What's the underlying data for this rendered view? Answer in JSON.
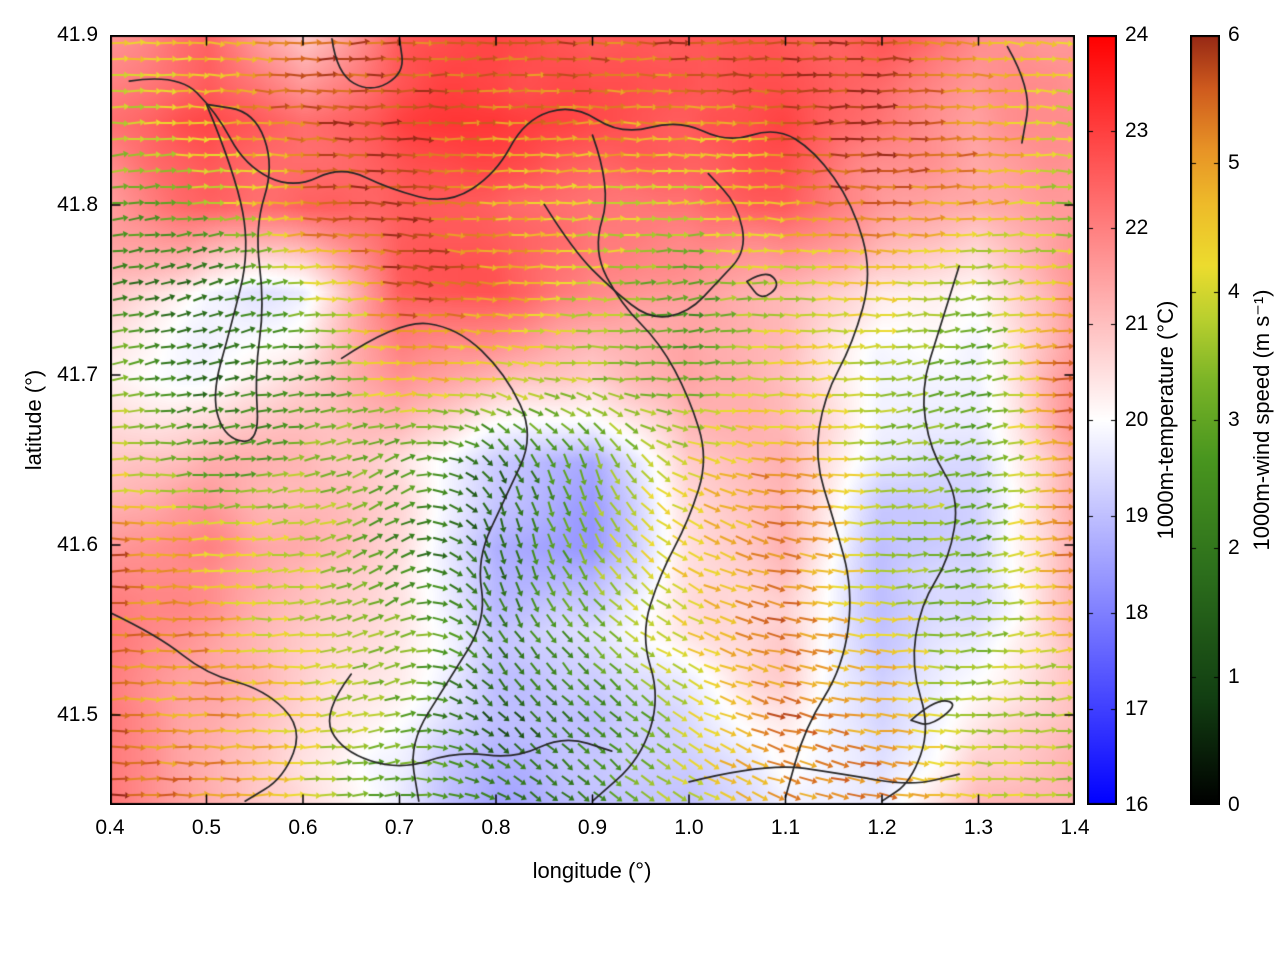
{
  "chart_data": {
    "type": "heatmap",
    "subtype": "temperature-field-with-wind-vector-overlay-and-contours",
    "title": "",
    "xlabel": "longitude (°)",
    "ylabel": "latitude (°)",
    "xlim": [
      0.4,
      1.4
    ],
    "ylim": [
      41.447,
      41.9
    ],
    "x_ticks": [
      0.4,
      0.5,
      0.6,
      0.7,
      0.8,
      0.9,
      1.0,
      1.1,
      1.2,
      1.3,
      1.4
    ],
    "x_tick_labels": [
      "0.4",
      "0.5",
      "0.6",
      "0.7",
      "0.8",
      "0.9",
      "1.0",
      "1.1",
      "1.2",
      "1.3",
      "1.4"
    ],
    "y_ticks": [
      41.5,
      41.6,
      41.7,
      41.8,
      41.9
    ],
    "y_tick_labels": [
      "41.5",
      "41.6",
      "41.7",
      "41.8",
      "41.9"
    ],
    "grid_on": false,
    "colorbars": [
      {
        "id": "temperature",
        "label": "1000m-temperature (°C)",
        "min": 16,
        "max": 24,
        "ticks": [
          16,
          17,
          18,
          19,
          20,
          21,
          22,
          23,
          24
        ],
        "tick_labels": [
          "16",
          "17",
          "18",
          "19",
          "20",
          "21",
          "22",
          "23",
          "24"
        ],
        "stops": [
          [
            0,
            "#0000ff"
          ],
          [
            0.5,
            "#ffffff"
          ],
          [
            1,
            "#ff0000"
          ]
        ]
      },
      {
        "id": "wind-speed",
        "label": "1000m-wind speed (m s⁻¹)",
        "min": 0,
        "max": 6,
        "ticks": [
          0,
          1,
          2,
          3,
          4,
          5,
          6
        ],
        "tick_labels": [
          "0",
          "1",
          "2",
          "3",
          "4",
          "5",
          "6"
        ],
        "stops": [
          [
            0,
            "#000000"
          ],
          [
            0.14,
            "#123f12"
          ],
          [
            0.3,
            "#2c6e1c"
          ],
          [
            0.45,
            "#49961f"
          ],
          [
            0.55,
            "#7ab427"
          ],
          [
            0.63,
            "#b8cf2e"
          ],
          [
            0.7,
            "#ecdc2e"
          ],
          [
            0.78,
            "#eebb2a"
          ],
          [
            0.85,
            "#e89426"
          ],
          [
            0.93,
            "#cf5b1e"
          ],
          [
            1,
            "#962815"
          ]
        ]
      }
    ],
    "grid": {
      "lon": [
        0.4,
        0.5,
        0.6,
        0.7,
        0.8,
        0.9,
        1.0,
        1.1,
        1.2,
        1.3,
        1.4
      ],
      "lat": [
        41.9,
        41.85,
        41.8,
        41.75,
        41.7,
        41.65,
        41.6,
        41.55,
        41.5,
        41.45
      ],
      "temperature": [
        [
          22.0,
          22.5,
          20.8,
          22.3,
          22.6,
          22.3,
          22.6,
          22.2,
          22.4,
          21.6,
          21.8
        ],
        [
          22.3,
          23.0,
          22.4,
          22.8,
          23.0,
          22.6,
          22.4,
          22.6,
          22.0,
          21.4,
          21.9
        ],
        [
          21.4,
          22.4,
          22.9,
          22.5,
          22.2,
          22.0,
          21.9,
          22.4,
          21.4,
          21.0,
          21.6
        ],
        [
          20.8,
          19.9,
          20.0,
          22.4,
          22.5,
          21.6,
          21.4,
          21.0,
          20.0,
          19.8,
          21.4
        ],
        [
          20.6,
          20.2,
          20.6,
          21.6,
          21.0,
          20.6,
          21.4,
          20.8,
          19.6,
          19.6,
          21.5
        ],
        [
          21.0,
          21.4,
          21.0,
          20.4,
          19.0,
          18.4,
          20.6,
          21.0,
          19.5,
          19.3,
          21.0
        ],
        [
          21.5,
          22.0,
          21.4,
          20.5,
          18.5,
          18.2,
          20.4,
          21.4,
          19.3,
          19.6,
          21.4
        ],
        [
          22.0,
          21.6,
          21.0,
          20.4,
          19.0,
          19.4,
          20.4,
          21.0,
          19.5,
          20.0,
          21.4
        ],
        [
          22.2,
          21.6,
          20.8,
          20.2,
          19.2,
          19.0,
          19.6,
          20.5,
          19.6,
          20.5,
          21.0
        ],
        [
          22.5,
          21.6,
          20.6,
          20.0,
          18.9,
          19.2,
          19.0,
          20.0,
          19.8,
          21.0,
          21.0
        ]
      ],
      "wind_speed": [
        [
          4.0,
          4.6,
          5.4,
          5.6,
          5.9,
          5.6,
          5.4,
          5.6,
          5.9,
          5.0,
          4.6
        ],
        [
          3.6,
          4.6,
          5.5,
          5.9,
          5.6,
          5.4,
          5.0,
          5.6,
          5.9,
          5.0,
          4.4
        ],
        [
          3.0,
          3.6,
          5.0,
          5.6,
          4.6,
          4.0,
          4.4,
          5.0,
          5.5,
          5.0,
          4.0
        ],
        [
          2.6,
          1.4,
          3.4,
          5.5,
          4.6,
          3.6,
          2.6,
          4.0,
          4.4,
          3.6,
          5.0
        ],
        [
          3.0,
          1.2,
          2.6,
          4.6,
          4.0,
          3.6,
          3.0,
          4.4,
          3.6,
          3.0,
          5.5
        ],
        [
          4.0,
          3.0,
          3.6,
          2.6,
          1.6,
          3.0,
          4.0,
          5.0,
          3.6,
          2.6,
          5.5
        ],
        [
          5.5,
          4.6,
          4.0,
          2.0,
          1.2,
          3.4,
          4.6,
          5.5,
          4.0,
          3.0,
          5.0
        ],
        [
          5.6,
          5.0,
          4.0,
          3.4,
          2.0,
          3.0,
          4.6,
          5.6,
          4.6,
          3.6,
          4.6
        ],
        [
          5.6,
          5.0,
          4.6,
          3.4,
          1.6,
          2.6,
          4.0,
          5.5,
          5.0,
          4.0,
          4.0
        ],
        [
          5.9,
          5.0,
          4.0,
          3.0,
          2.0,
          2.6,
          4.0,
          5.0,
          5.5,
          4.6,
          4.0
        ]
      ],
      "wind_dir_deg": [
        [
          0,
          -3,
          0,
          3,
          0,
          -3,
          0,
          3,
          0,
          -5,
          -8
        ],
        [
          3,
          0,
          -3,
          0,
          3,
          0,
          -3,
          0,
          3,
          0,
          -5
        ],
        [
          6,
          4,
          0,
          -4,
          0,
          4,
          0,
          -3,
          0,
          4,
          0
        ],
        [
          12,
          18,
          5,
          -8,
          -4,
          0,
          6,
          0,
          -4,
          8,
          0
        ],
        [
          8,
          14,
          6,
          0,
          -6,
          -4,
          4,
          0,
          6,
          10,
          -4
        ],
        [
          0,
          4,
          12,
          25,
          -55,
          -75,
          -20,
          -6,
          8,
          15,
          0
        ],
        [
          0,
          2,
          8,
          35,
          -80,
          -60,
          -30,
          -10,
          0,
          10,
          4
        ],
        [
          0,
          0,
          5,
          22,
          -60,
          -45,
          -25,
          -10,
          -4,
          6,
          6
        ],
        [
          0,
          0,
          4,
          12,
          -45,
          -45,
          -30,
          -14,
          -6,
          0,
          4
        ],
        [
          0,
          0,
          0,
          6,
          -30,
          -40,
          -30,
          -20,
          -10,
          -4,
          0
        ]
      ]
    },
    "contours": [
      [
        [
          0.02,
          0.06
        ],
        [
          0.07,
          0.05
        ],
        [
          0.11,
          0.1
        ],
        [
          0.14,
          0.17
        ],
        [
          0.19,
          0.2
        ],
        [
          0.24,
          0.17
        ],
        [
          0.29,
          0.2
        ],
        [
          0.35,
          0.22
        ],
        [
          0.4,
          0.18
        ],
        [
          0.43,
          0.11
        ],
        [
          0.48,
          0.09
        ],
        [
          0.53,
          0.13
        ],
        [
          0.59,
          0.11
        ],
        [
          0.64,
          0.14
        ],
        [
          0.69,
          0.12
        ],
        [
          0.73,
          0.15
        ],
        [
          0.77,
          0.22
        ],
        [
          0.79,
          0.31
        ],
        [
          0.77,
          0.4
        ],
        [
          0.74,
          0.47
        ],
        [
          0.73,
          0.55
        ],
        [
          0.75,
          0.63
        ],
        [
          0.77,
          0.72
        ],
        [
          0.76,
          0.82
        ],
        [
          0.72,
          0.9
        ],
        [
          0.7,
          0.99
        ]
      ],
      [
        [
          0.23,
          0.005
        ],
        [
          0.235,
          0.05
        ],
        [
          0.27,
          0.075
        ],
        [
          0.305,
          0.05
        ],
        [
          0.3,
          0.005
        ]
      ],
      [
        [
          0.1,
          0.09
        ],
        [
          0.13,
          0.18
        ],
        [
          0.145,
          0.28
        ],
        [
          0.125,
          0.38
        ],
        [
          0.105,
          0.47
        ],
        [
          0.12,
          0.525
        ],
        [
          0.155,
          0.53
        ],
        [
          0.15,
          0.44
        ],
        [
          0.16,
          0.35
        ],
        [
          0.15,
          0.25
        ],
        [
          0.17,
          0.17
        ],
        [
          0.15,
          0.1
        ],
        [
          0.1,
          0.09
        ]
      ],
      [
        [
          0.24,
          0.42
        ],
        [
          0.3,
          0.37
        ],
        [
          0.36,
          0.38
        ],
        [
          0.41,
          0.44
        ],
        [
          0.44,
          0.52
        ],
        [
          0.41,
          0.6
        ],
        [
          0.38,
          0.68
        ],
        [
          0.39,
          0.76
        ],
        [
          0.35,
          0.84
        ],
        [
          0.31,
          0.92
        ],
        [
          0.32,
          0.995
        ]
      ],
      [
        [
          0.5,
          0.13
        ],
        [
          0.52,
          0.2
        ],
        [
          0.5,
          0.28
        ],
        [
          0.53,
          0.35
        ],
        [
          0.57,
          0.4
        ],
        [
          0.6,
          0.47
        ],
        [
          0.62,
          0.55
        ],
        [
          0.6,
          0.63
        ],
        [
          0.57,
          0.7
        ],
        [
          0.55,
          0.78
        ],
        [
          0.57,
          0.86
        ],
        [
          0.55,
          0.94
        ],
        [
          0.5,
          0.995
        ]
      ],
      [
        [
          0.88,
          0.3
        ],
        [
          0.86,
          0.38
        ],
        [
          0.84,
          0.46
        ],
        [
          0.85,
          0.54
        ],
        [
          0.88,
          0.6
        ],
        [
          0.87,
          0.68
        ],
        [
          0.84,
          0.74
        ],
        [
          0.83,
          0.82
        ],
        [
          0.85,
          0.9
        ],
        [
          0.83,
          0.97
        ],
        [
          0.8,
          0.995
        ]
      ],
      [
        [
          0.45,
          0.22
        ],
        [
          0.48,
          0.28
        ],
        [
          0.52,
          0.33
        ],
        [
          0.56,
          0.37
        ],
        [
          0.6,
          0.36
        ],
        [
          0.63,
          0.32
        ],
        [
          0.66,
          0.28
        ],
        [
          0.65,
          0.22
        ],
        [
          0.62,
          0.18
        ]
      ],
      [
        [
          0.66,
          0.32
        ],
        [
          0.68,
          0.305
        ],
        [
          0.695,
          0.325
        ],
        [
          0.675,
          0.345
        ],
        [
          0.66,
          0.32
        ]
      ],
      [
        [
          0.83,
          0.89
        ],
        [
          0.855,
          0.862
        ],
        [
          0.88,
          0.868
        ],
        [
          0.85,
          0.898
        ],
        [
          0.83,
          0.89
        ]
      ],
      [
        [
          0.0,
          0.75
        ],
        [
          0.05,
          0.78
        ],
        [
          0.1,
          0.83
        ],
        [
          0.16,
          0.85
        ],
        [
          0.2,
          0.9
        ],
        [
          0.18,
          0.965
        ],
        [
          0.14,
          0.995
        ]
      ],
      [
        [
          0.25,
          0.83
        ],
        [
          0.22,
          0.88
        ],
        [
          0.24,
          0.93
        ],
        [
          0.3,
          0.955
        ],
        [
          0.36,
          0.93
        ],
        [
          0.42,
          0.94
        ],
        [
          0.47,
          0.91
        ],
        [
          0.52,
          0.93
        ]
      ],
      [
        [
          0.6,
          0.97
        ],
        [
          0.68,
          0.945
        ],
        [
          0.76,
          0.96
        ],
        [
          0.83,
          0.975
        ],
        [
          0.88,
          0.96
        ]
      ],
      [
        [
          0.93,
          0.015
        ],
        [
          0.955,
          0.07
        ],
        [
          0.945,
          0.14
        ]
      ]
    ]
  }
}
